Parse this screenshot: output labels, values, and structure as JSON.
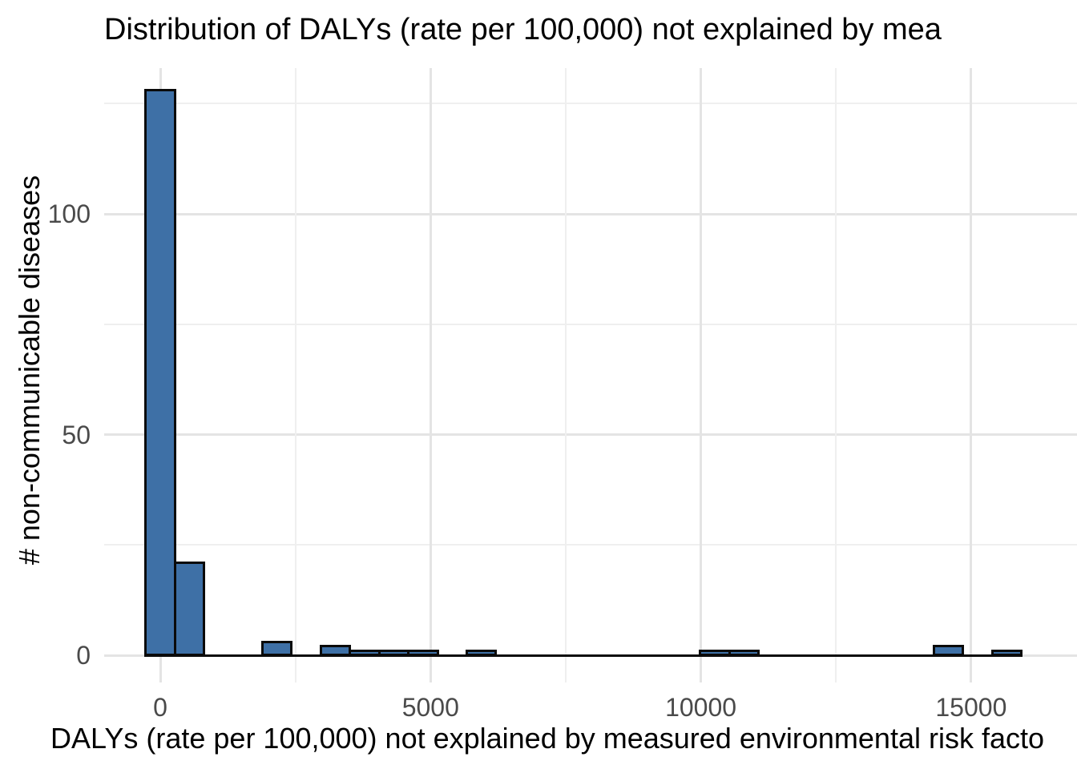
{
  "chart_data": {
    "type": "bar",
    "subtype": "histogram",
    "title": "Distribution of DALYs (rate per 100,000) not explained by mea",
    "xlabel": "DALYs (rate per 100,000) not explained by measured environmental risk facto",
    "ylabel": "# non-communicable diseases",
    "bin_width": 540,
    "bin_centers": [
      0,
      540,
      1080,
      1620,
      2160,
      2700,
      3240,
      3780,
      4320,
      4860,
      5400,
      5940,
      6480,
      7020,
      7560,
      8100,
      8640,
      9180,
      9720,
      10260,
      10800,
      11340,
      11880,
      12420,
      12960,
      13500,
      14040,
      14580,
      15120,
      15660
    ],
    "counts": [
      128,
      21,
      0,
      0,
      3,
      0,
      2,
      1,
      1,
      1,
      0,
      1,
      0,
      0,
      0,
      0,
      0,
      0,
      0,
      1,
      1,
      0,
      0,
      0,
      0,
      0,
      0,
      2,
      0,
      1
    ],
    "x_ticks": [
      0,
      5000,
      10000,
      15000
    ],
    "x_minor_gridlines": [
      2500,
      7500,
      12500
    ],
    "y_ticks": [
      0,
      50,
      100
    ],
    "y_minor_gridlines": [
      25,
      75,
      125
    ],
    "xlim": [
      -270,
      15930
    ],
    "ylim": [
      0,
      128
    ],
    "grid": "on",
    "legend": "none"
  },
  "colors": {
    "bar_fill": "#3E70A6",
    "bar_stroke": "#0A0A0A",
    "grid_major": "#E4E4E4",
    "grid_minor": "#EFEFEF",
    "tick_text": "#4A4A4A",
    "label_text": "#000000",
    "background": "#FFFFFF"
  }
}
